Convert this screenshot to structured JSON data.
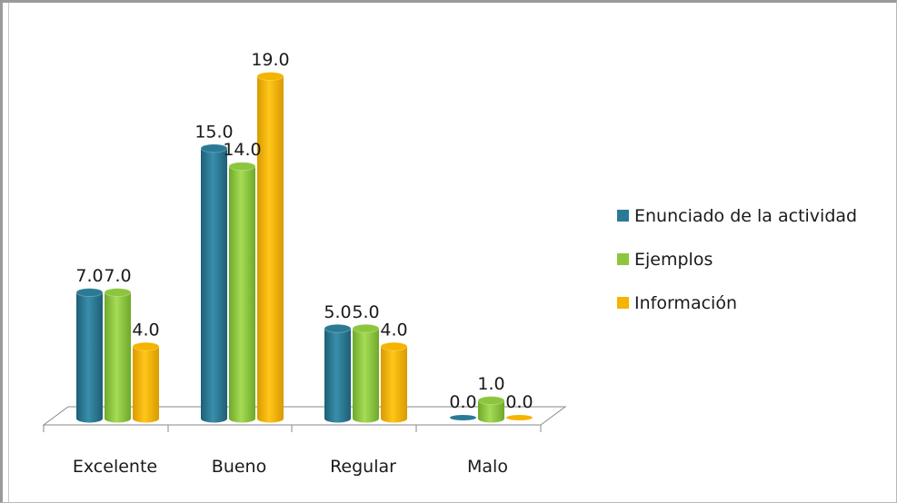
{
  "chart_data": {
    "type": "bar",
    "categories": [
      "Excelente",
      "Bueno",
      "Regular",
      "Malo"
    ],
    "series": [
      {
        "name": "Enunciado de la actividad",
        "values": [
          7.0,
          15.0,
          5.0,
          0.0
        ],
        "labels": [
          "7.0",
          "15.0",
          "5.0",
          "0.0"
        ]
      },
      {
        "name": "Ejemplos",
        "values": [
          7.0,
          14.0,
          5.0,
          1.0
        ],
        "labels": [
          "7.0",
          "14.0",
          "5.0",
          "1.0"
        ]
      },
      {
        "name": "Información",
        "values": [
          4.0,
          19.0,
          4.0,
          0.0
        ],
        "labels": [
          "4.0",
          "19.0",
          "4.0",
          "0.0"
        ]
      }
    ],
    "colors": [
      "#2a7a96",
      "#8cc63f",
      "#f5b400"
    ],
    "ylim": [
      0,
      19
    ],
    "grid": false,
    "legend_position": "right",
    "style": "3d-cylinder"
  }
}
